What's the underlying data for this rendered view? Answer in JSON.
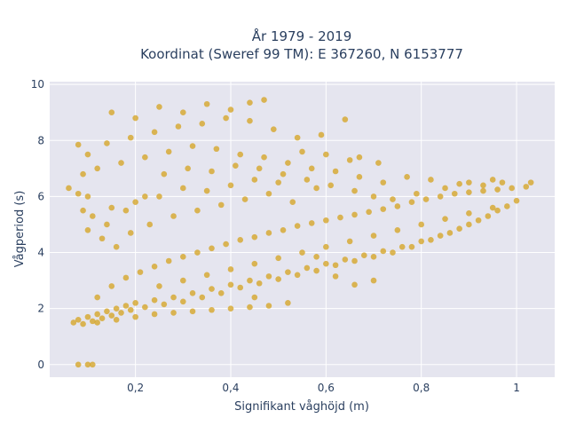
{
  "chart_data": {
    "type": "scatter",
    "title_line1": "År 1979 - 2019",
    "title_line2": "Koordinat (Sweref 99 TM): E 367260, N 6153777",
    "xlabel": "Signifikant våghöjd (m)",
    "ylabel": "Vågperiod (s)",
    "xlim": [
      0.02,
      1.08
    ],
    "ylim": [
      -0.45,
      10.1
    ],
    "xticks": [
      0.2,
      0.4,
      0.6,
      0.8,
      1.0
    ],
    "xtick_labels": [
      "0,2",
      "0,4",
      "0,6",
      "0,8",
      "1"
    ],
    "yticks": [
      0,
      2,
      4,
      6,
      8,
      10
    ],
    "ytick_labels": [
      "0",
      "2",
      "4",
      "6",
      "8",
      "10"
    ],
    "grid": true,
    "marker_color": "#D4A21E",
    "background_color": "#E5E5EF",
    "points": [
      [
        0.07,
        1.5
      ],
      [
        0.08,
        1.6
      ],
      [
        0.09,
        1.45
      ],
      [
        0.1,
        1.7
      ],
      [
        0.11,
        1.55
      ],
      [
        0.12,
        1.8
      ],
      [
        0.13,
        1.65
      ],
      [
        0.14,
        1.9
      ],
      [
        0.15,
        1.75
      ],
      [
        0.16,
        2.0
      ],
      [
        0.17,
        1.85
      ],
      [
        0.18,
        2.1
      ],
      [
        0.19,
        1.95
      ],
      [
        0.2,
        2.2
      ],
      [
        0.22,
        2.05
      ],
      [
        0.24,
        2.3
      ],
      [
        0.26,
        2.15
      ],
      [
        0.28,
        2.4
      ],
      [
        0.3,
        2.25
      ],
      [
        0.32,
        2.55
      ],
      [
        0.34,
        2.4
      ],
      [
        0.36,
        2.7
      ],
      [
        0.38,
        2.55
      ],
      [
        0.4,
        2.85
      ],
      [
        0.42,
        2.75
      ],
      [
        0.44,
        3.0
      ],
      [
        0.46,
        2.9
      ],
      [
        0.48,
        3.15
      ],
      [
        0.5,
        3.05
      ],
      [
        0.52,
        3.3
      ],
      [
        0.54,
        3.2
      ],
      [
        0.56,
        3.45
      ],
      [
        0.58,
        3.35
      ],
      [
        0.6,
        3.6
      ],
      [
        0.62,
        3.55
      ],
      [
        0.64,
        3.75
      ],
      [
        0.66,
        3.7
      ],
      [
        0.68,
        3.9
      ],
      [
        0.7,
        3.85
      ],
      [
        0.72,
        4.05
      ],
      [
        0.74,
        4.0
      ],
      [
        0.76,
        4.2
      ],
      [
        0.78,
        4.2
      ],
      [
        0.8,
        4.4
      ],
      [
        0.82,
        4.45
      ],
      [
        0.84,
        4.6
      ],
      [
        0.86,
        4.7
      ],
      [
        0.88,
        4.85
      ],
      [
        0.9,
        5.0
      ],
      [
        0.92,
        5.15
      ],
      [
        0.94,
        5.3
      ],
      [
        0.96,
        5.5
      ],
      [
        0.98,
        5.65
      ],
      [
        1.0,
        5.85
      ],
      [
        0.12,
        2.4
      ],
      [
        0.15,
        2.8
      ],
      [
        0.18,
        3.1
      ],
      [
        0.21,
        3.3
      ],
      [
        0.24,
        3.5
      ],
      [
        0.27,
        3.7
      ],
      [
        0.3,
        3.85
      ],
      [
        0.33,
        4.0
      ],
      [
        0.36,
        4.15
      ],
      [
        0.39,
        4.3
      ],
      [
        0.42,
        4.45
      ],
      [
        0.45,
        4.55
      ],
      [
        0.48,
        4.7
      ],
      [
        0.51,
        4.8
      ],
      [
        0.54,
        4.95
      ],
      [
        0.57,
        5.05
      ],
      [
        0.6,
        5.15
      ],
      [
        0.63,
        5.25
      ],
      [
        0.66,
        5.35
      ],
      [
        0.69,
        5.45
      ],
      [
        0.72,
        5.55
      ],
      [
        0.75,
        5.65
      ],
      [
        0.78,
        5.8
      ],
      [
        0.81,
        5.9
      ],
      [
        0.84,
        6.0
      ],
      [
        0.87,
        6.1
      ],
      [
        0.9,
        6.15
      ],
      [
        0.93,
        6.2
      ],
      [
        0.96,
        6.25
      ],
      [
        0.99,
        6.3
      ],
      [
        1.02,
        6.35
      ],
      [
        0.97,
        6.5
      ],
      [
        0.93,
        6.4
      ],
      [
        0.88,
        6.45
      ],
      [
        0.82,
        6.6
      ],
      [
        0.77,
        6.7
      ],
      [
        0.72,
        6.5
      ],
      [
        0.67,
        6.7
      ],
      [
        0.62,
        6.9
      ],
      [
        0.57,
        7.0
      ],
      [
        0.52,
        7.2
      ],
      [
        0.47,
        7.4
      ],
      [
        0.42,
        7.5
      ],
      [
        0.37,
        7.7
      ],
      [
        0.32,
        7.8
      ],
      [
        0.27,
        7.6
      ],
      [
        0.22,
        7.4
      ],
      [
        0.17,
        7.2
      ],
      [
        0.12,
        7.0
      ],
      [
        0.09,
        6.8
      ],
      [
        0.1,
        7.5
      ],
      [
        0.08,
        7.85
      ],
      [
        0.14,
        7.9
      ],
      [
        0.19,
        8.1
      ],
      [
        0.24,
        8.3
      ],
      [
        0.29,
        8.5
      ],
      [
        0.34,
        8.6
      ],
      [
        0.39,
        8.8
      ],
      [
        0.44,
        8.7
      ],
      [
        0.49,
        8.4
      ],
      [
        0.54,
        8.1
      ],
      [
        0.59,
        8.2
      ],
      [
        0.64,
        8.75
      ],
      [
        0.67,
        7.4
      ],
      [
        0.71,
        7.2
      ],
      [
        0.58,
        6.3
      ],
      [
        0.5,
        6.5
      ],
      [
        0.45,
        6.6
      ],
      [
        0.4,
        6.4
      ],
      [
        0.35,
        6.2
      ],
      [
        0.3,
        6.3
      ],
      [
        0.25,
        6.0
      ],
      [
        0.2,
        5.8
      ],
      [
        0.15,
        5.6
      ],
      [
        0.11,
        5.3
      ],
      [
        0.1,
        4.8
      ],
      [
        0.13,
        4.5
      ],
      [
        0.16,
        4.2
      ],
      [
        0.19,
        4.7
      ],
      [
        0.23,
        5.0
      ],
      [
        0.28,
        5.3
      ],
      [
        0.33,
        5.5
      ],
      [
        0.38,
        5.7
      ],
      [
        0.43,
        5.9
      ],
      [
        0.48,
        6.1
      ],
      [
        0.53,
        5.8
      ],
      [
        0.06,
        6.3
      ],
      [
        0.08,
        6.1
      ],
      [
        0.3,
        9.0
      ],
      [
        0.35,
        9.3
      ],
      [
        0.4,
        9.1
      ],
      [
        0.44,
        9.35
      ],
      [
        0.47,
        9.45
      ],
      [
        0.25,
        9.2
      ],
      [
        0.15,
        9.0
      ],
      [
        0.2,
        8.8
      ],
      [
        0.55,
        7.6
      ],
      [
        0.6,
        7.5
      ],
      [
        0.65,
        7.3
      ],
      [
        0.08,
        0.0
      ],
      [
        0.1,
        0.0
      ],
      [
        0.11,
        0.0
      ],
      [
        0.09,
        5.5
      ],
      [
        0.1,
        6.0
      ],
      [
        0.14,
        5.0
      ],
      [
        0.18,
        5.5
      ],
      [
        0.22,
        6.0
      ],
      [
        0.26,
        6.8
      ],
      [
        0.31,
        7.0
      ],
      [
        0.36,
        6.9
      ],
      [
        0.41,
        7.1
      ],
      [
        0.46,
        7.0
      ],
      [
        0.51,
        6.8
      ],
      [
        0.56,
        6.6
      ],
      [
        0.61,
        6.4
      ],
      [
        0.66,
        6.2
      ],
      [
        0.7,
        6.0
      ],
      [
        0.74,
        5.9
      ],
      [
        0.79,
        6.1
      ],
      [
        0.85,
        6.3
      ],
      [
        0.9,
        6.5
      ],
      [
        0.95,
        6.6
      ],
      [
        1.03,
        6.5
      ],
      [
        0.55,
        4.0
      ],
      [
        0.5,
        3.8
      ],
      [
        0.45,
        3.6
      ],
      [
        0.4,
        3.4
      ],
      [
        0.35,
        3.2
      ],
      [
        0.3,
        3.0
      ],
      [
        0.25,
        2.8
      ],
      [
        0.6,
        4.2
      ],
      [
        0.65,
        4.4
      ],
      [
        0.7,
        4.6
      ],
      [
        0.75,
        4.8
      ],
      [
        0.8,
        5.0
      ],
      [
        0.85,
        5.2
      ],
      [
        0.9,
        5.4
      ],
      [
        0.95,
        5.6
      ],
      [
        0.62,
        3.15
      ],
      [
        0.52,
        2.2
      ],
      [
        0.48,
        2.1
      ],
      [
        0.44,
        2.05
      ],
      [
        0.4,
        2.0
      ],
      [
        0.36,
        1.95
      ],
      [
        0.32,
        1.9
      ],
      [
        0.28,
        1.85
      ],
      [
        0.24,
        1.8
      ],
      [
        0.2,
        1.7
      ],
      [
        0.16,
        1.6
      ],
      [
        0.12,
        1.5
      ],
      [
        0.66,
        2.85
      ],
      [
        0.7,
        3.0
      ],
      [
        0.58,
        3.85
      ],
      [
        0.45,
        2.4
      ]
    ]
  }
}
